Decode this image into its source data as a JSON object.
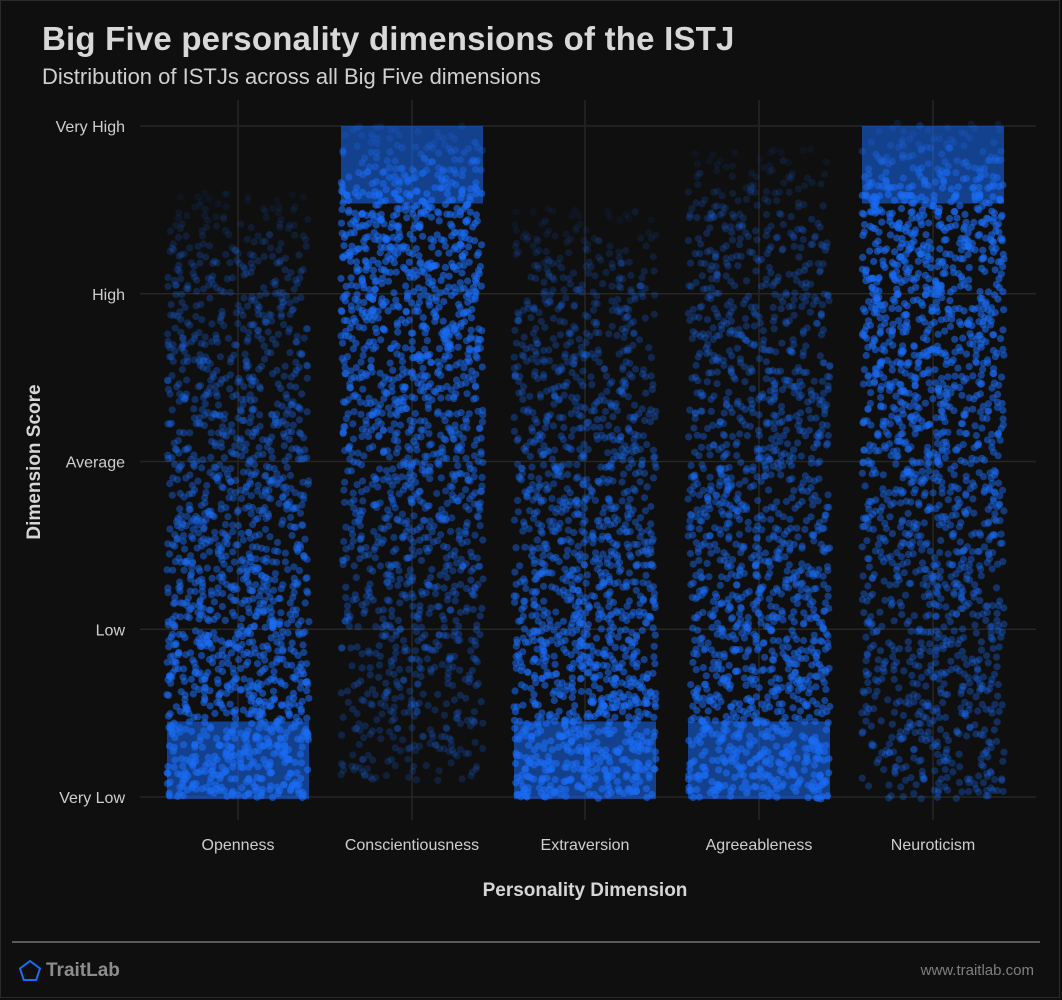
{
  "header": {
    "title": "Big Five personality dimensions of the ISTJ",
    "subtitle": "Distribution of ISTJs across all Big Five dimensions"
  },
  "footer": {
    "brand": "TraitLab",
    "url": "www.traitlab.com"
  },
  "colors": {
    "background": "#0f0f0f",
    "point": "#1a6cf5",
    "grid": "#262626",
    "text": "#d8d8d8"
  },
  "chart_data": {
    "type": "scatter",
    "title": "Big Five personality dimensions of the ISTJ",
    "subtitle": "Distribution of ISTJs across all Big Five dimensions",
    "xlabel": "Personality Dimension",
    "ylabel": "Dimension Score",
    "categories": [
      "Openness",
      "Conscientiousness",
      "Extraversion",
      "Agreeableness",
      "Neuroticism"
    ],
    "y_ticks": [
      "Very Low",
      "Low",
      "Average",
      "High",
      "Very High"
    ],
    "ylim": [
      0,
      4
    ],
    "grid": true,
    "legend": "none",
    "series": [
      {
        "category": "Openness",
        "min": 0.0,
        "max": 3.6,
        "peak": "low",
        "density_profile": [
          1.0,
          0.85,
          0.6,
          0.35,
          0.12
        ]
      },
      {
        "category": "Conscientiousness",
        "min": 0.1,
        "max": 4.0,
        "peak": "high",
        "density_profile": [
          0.2,
          0.45,
          0.75,
          0.95,
          1.0
        ]
      },
      {
        "category": "Extraversion",
        "min": 0.0,
        "max": 3.5,
        "peak": "low",
        "density_profile": [
          1.0,
          0.85,
          0.55,
          0.3,
          0.12
        ]
      },
      {
        "category": "Agreeableness",
        "min": 0.0,
        "max": 3.85,
        "peak": "low",
        "density_profile": [
          1.0,
          0.8,
          0.6,
          0.4,
          0.2
        ]
      },
      {
        "category": "Neuroticism",
        "min": 0.0,
        "max": 4.0,
        "peak": "high",
        "density_profile": [
          0.45,
          0.55,
          0.8,
          0.95,
          1.0
        ]
      }
    ]
  }
}
